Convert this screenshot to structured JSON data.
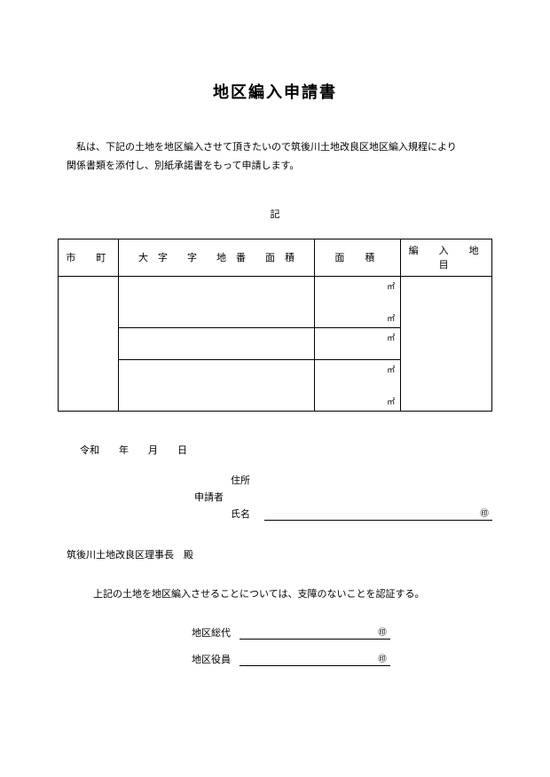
{
  "title": "地区編入申請書",
  "intro_line1": "私は、下記の土地を地区編入させて頂きたいので筑後川土地改良区地区編入規程により",
  "intro_line2": "関係書類を添付し、別紙承諾書をもって申請します。",
  "kigou": "記",
  "table": {
    "headers": {
      "h1": "市　町",
      "h2": "大　字　　字　　地　番　　面　積",
      "h3": "面　積",
      "h4": "編　入　地　目"
    },
    "unit_top": "㎡",
    "unit_bot": "㎡"
  },
  "date": "令和　　年　　月　　日",
  "applicant": {
    "group_label": "申請者",
    "addr": "住所",
    "name": "氏名",
    "seal": "㊞"
  },
  "addressee": "筑後川土地改良区理事長　殿",
  "confirm": "上記の土地を地区編入させることについては、支障のないことを認証する。",
  "sig": {
    "soudai": "地区総代",
    "iin": "地区役員",
    "seal1": "㊞",
    "seal2": "㊞"
  },
  "colors": {
    "bg": "#ffffff",
    "text": "#000000",
    "border": "#000000"
  }
}
